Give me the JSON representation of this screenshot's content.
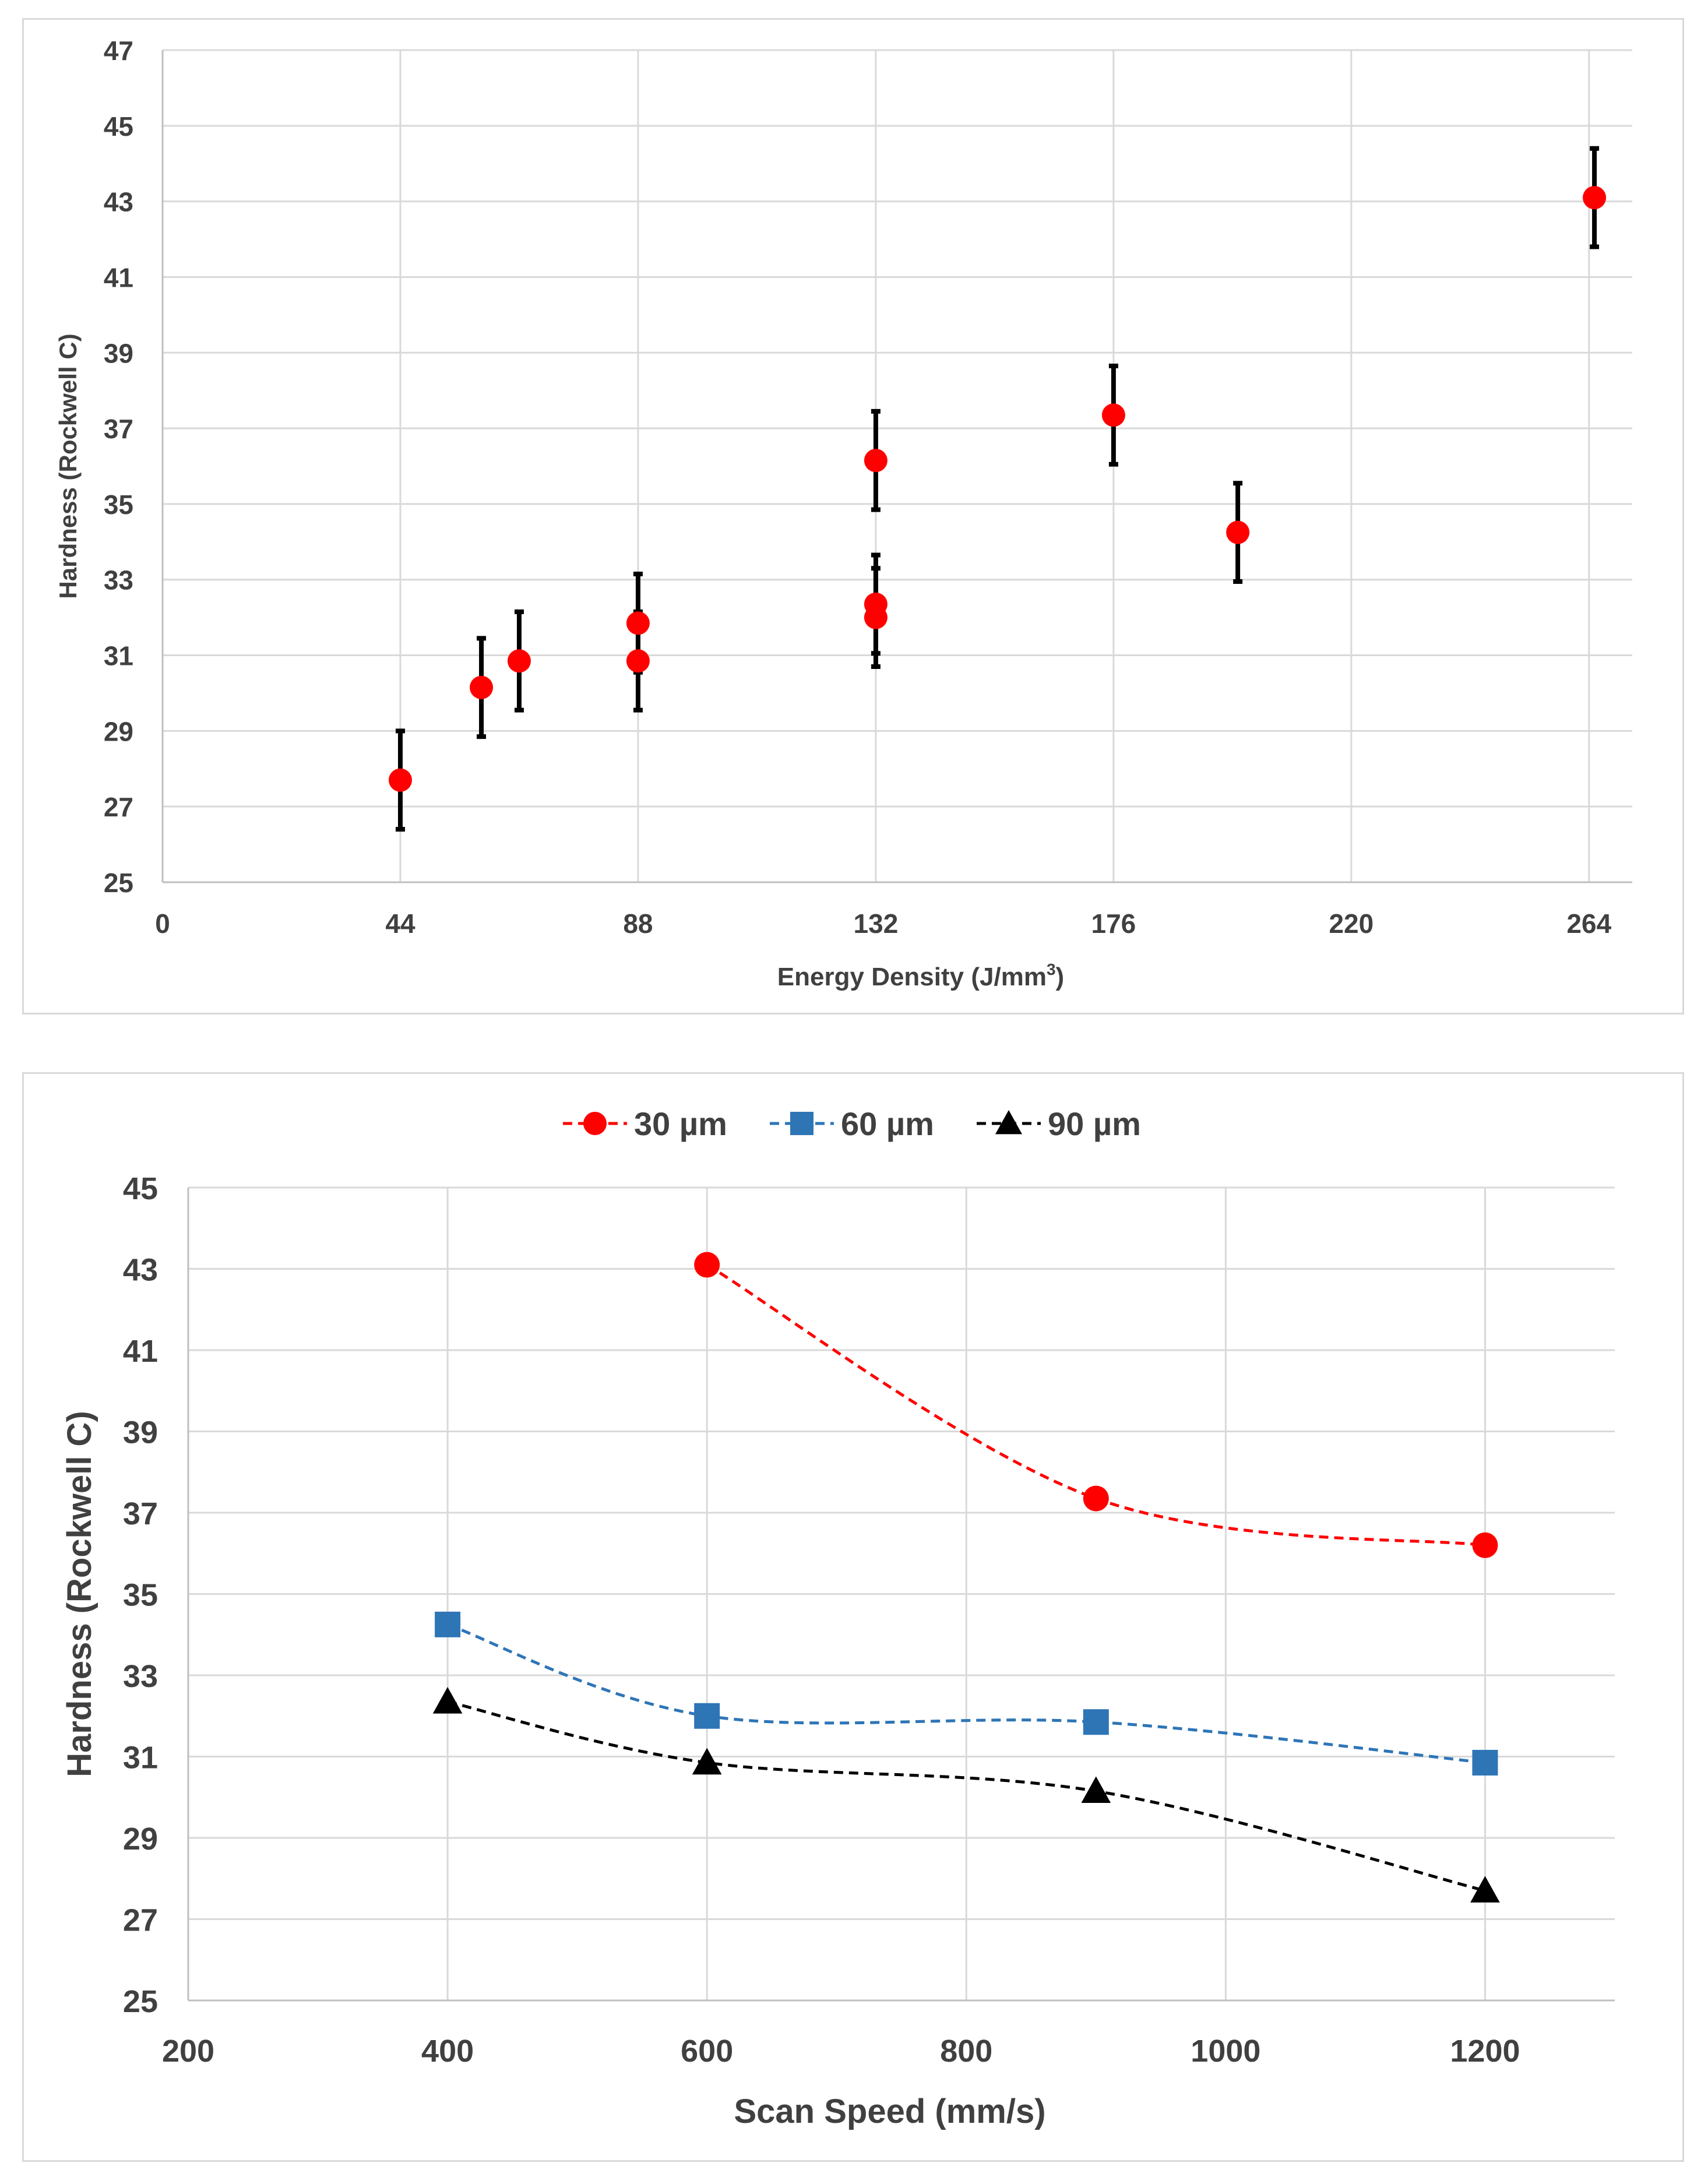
{
  "colors": {
    "red": "#ff0000",
    "blue": "#2e75b6",
    "black": "#000000",
    "grid": "#d9d9d9",
    "text": "#404040"
  },
  "chart_data": [
    {
      "type": "scatter",
      "title": "",
      "xlabel": "Energy  Density (J/mm",
      "xlabel_sup": "3",
      "xlabel_end": ")",
      "ylabel": "Hardness (Rockwell C)",
      "xlim": [
        0,
        272
      ],
      "ylim": [
        25,
        47
      ],
      "xticks": [
        0,
        44,
        88,
        132,
        176,
        220,
        264
      ],
      "yticks": [
        25,
        27,
        29,
        31,
        33,
        35,
        37,
        39,
        41,
        43,
        45,
        47
      ],
      "x": [
        44,
        59,
        66,
        88,
        88,
        132,
        132,
        132,
        176,
        199,
        265
      ],
      "y": [
        27.7,
        30.15,
        30.85,
        31.85,
        30.85,
        36.15,
        32.35,
        32.0,
        37.35,
        34.25,
        43.1
      ],
      "error": [
        1.3,
        1.3,
        1.3,
        1.3,
        1.3,
        1.3,
        1.3,
        1.3,
        1.3,
        1.3,
        1.3
      ]
    },
    {
      "type": "line",
      "title": "",
      "xlabel": "Scan Speed (mm/s)",
      "ylabel": "Hardness (Rockwell C)",
      "xlim": [
        200,
        1300
      ],
      "ylim": [
        25,
        45
      ],
      "xticks": [
        200,
        400,
        600,
        800,
        1000,
        1200
      ],
      "yticks": [
        25,
        27,
        29,
        31,
        33,
        35,
        37,
        39,
        41,
        43,
        45
      ],
      "legend_position": "top",
      "series": [
        {
          "name": "30 µm",
          "marker": "circle",
          "x": [
            600,
            900,
            1200
          ],
          "y": [
            43.1,
            37.35,
            36.2
          ]
        },
        {
          "name": "60 µm",
          "marker": "square",
          "x": [
            400,
            600,
            900,
            1200
          ],
          "y": [
            34.25,
            32.0,
            31.85,
            30.85
          ]
        },
        {
          "name": "90 µm",
          "marker": "triangle",
          "x": [
            400,
            600,
            900,
            1200
          ],
          "y": [
            32.35,
            30.85,
            30.15,
            27.7
          ]
        }
      ]
    }
  ]
}
